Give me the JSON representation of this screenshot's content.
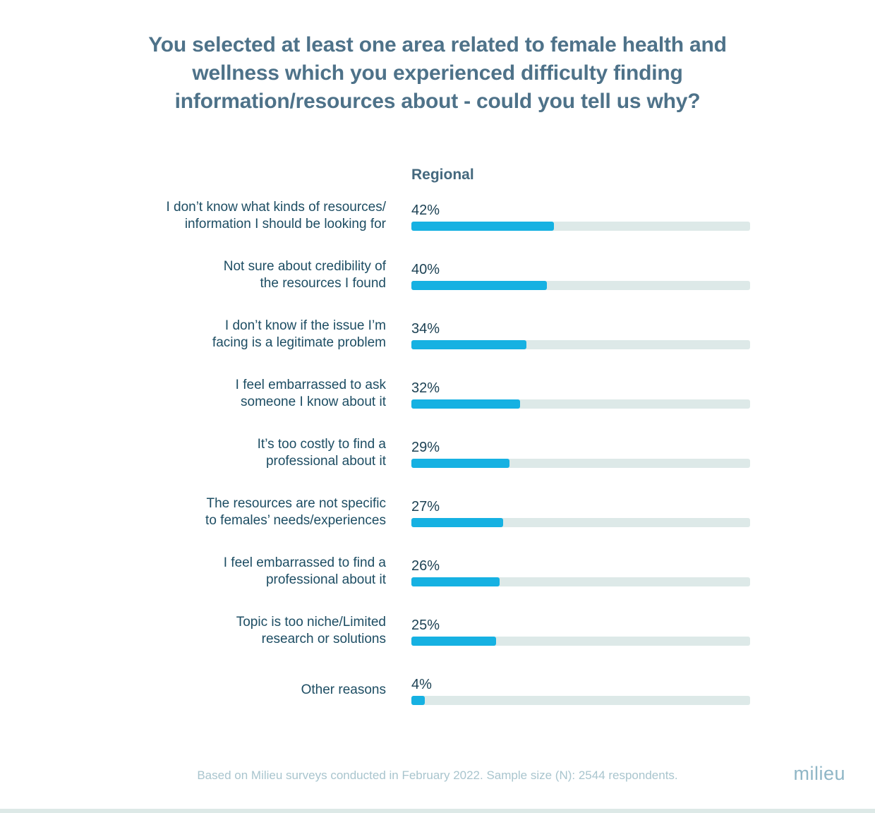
{
  "title_display": "You selected at least one area related to female health and\nwellness which you experienced difficulty finding\ninformation/resources about - could you tell us why?",
  "column_header": "Regional",
  "footer": {
    "source_note": "Based on Milieu surveys conducted in February 2022. Sample size (N): 2544 respondents.",
    "brand": "milieu"
  },
  "colors": {
    "title": "#4e7289",
    "header": "#44687e",
    "label": "#1d4d63",
    "value": "#1d4254",
    "bar_fill": "#16b1e2",
    "bar_track": "#dde9e8",
    "footer": "#a9c5ce",
    "brand": "#8fb6c6",
    "bottom_strip": "#dde9e7"
  },
  "chart_data": {
    "type": "bar",
    "orientation": "horizontal",
    "title": "You selected at least one area related to female health and wellness which you experienced difficulty finding information/resources about - could you tell us why?",
    "series": [
      {
        "name": "Regional",
        "values": [
          42,
          40,
          34,
          32,
          29,
          27,
          26,
          25,
          4
        ]
      }
    ],
    "categories": [
      "I don’t know what kinds of resources/information I should be looking for",
      "Not sure about credibility of the resources I found",
      "I don’t know if the issue I’m facing is a legitimate problem",
      "I feel embarrassed to ask someone I know about it",
      "It’s too costly to find a professional about it",
      "The resources are not specific to females’ needs/experiences",
      "I feel embarrassed to find a professional about it",
      "Topic is too niche/Limited research or solutions",
      "Other reasons"
    ],
    "unit": "%",
    "xlim": [
      0,
      100
    ],
    "grid": false,
    "legend_position": "top",
    "rows": [
      {
        "label": "I don’t know what kinds of resources/\ninformation I should be looking for",
        "value": 42,
        "value_label": "42%"
      },
      {
        "label": "Not sure about credibility of\nthe resources I found",
        "value": 40,
        "value_label": "40%"
      },
      {
        "label": "I don’t know if the issue I’m\nfacing is a legitimate problem",
        "value": 34,
        "value_label": "34%"
      },
      {
        "label": "I feel embarrassed to ask\nsomeone I know about it",
        "value": 32,
        "value_label": "32%"
      },
      {
        "label": "It’s too costly to find a\nprofessional about it",
        "value": 29,
        "value_label": "29%"
      },
      {
        "label": "The resources are not specific\nto females’ needs/experiences",
        "value": 27,
        "value_label": "27%"
      },
      {
        "label": "I feel embarrassed to find a\nprofessional about it",
        "value": 26,
        "value_label": "26%"
      },
      {
        "label": "Topic is too niche/Limited\nresearch or solutions",
        "value": 25,
        "value_label": "25%"
      },
      {
        "label": "Other reasons",
        "value": 4,
        "value_label": "4%"
      }
    ]
  }
}
